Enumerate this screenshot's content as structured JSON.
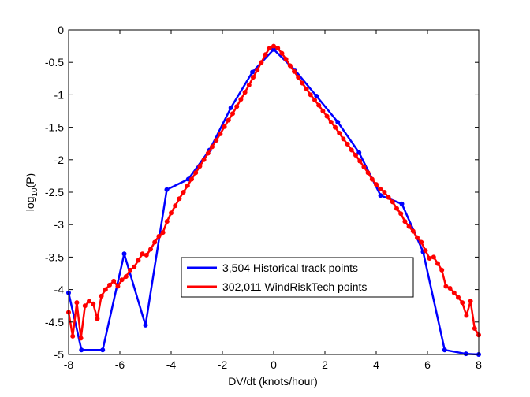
{
  "chart_data": {
    "type": "line",
    "title": "",
    "xlabel": "DV/dt (knots/hour)",
    "ylabel_base": "log",
    "ylabel_sub": "10",
    "ylabel_tail": "(P)",
    "xlim": [
      -8,
      8
    ],
    "ylim": [
      -5,
      0
    ],
    "xticks": [
      -8,
      -6,
      -4,
      -2,
      0,
      2,
      4,
      6,
      8
    ],
    "yticks": [
      0,
      -0.5,
      -1,
      -1.5,
      -2,
      -2.5,
      -3,
      -3.5,
      -4,
      -4.5,
      -5
    ],
    "grid": false,
    "legend_position": "center-right",
    "series": [
      {
        "name": "3,504 Historical track points",
        "color": "#0000ff",
        "x": [
          -8,
          -7.5,
          -6.67,
          -5.83,
          -5,
          -4.17,
          -3.33,
          -2.5,
          -1.67,
          -0.83,
          0,
          0.83,
          1.67,
          2.5,
          3.33,
          4.17,
          5,
          5.83,
          6.67,
          7.5,
          8
        ],
        "y": [
          -4.05,
          -4.93,
          -4.93,
          -3.45,
          -4.55,
          -2.46,
          -2.3,
          -1.85,
          -1.2,
          -0.65,
          -0.3,
          -0.62,
          -1.02,
          -1.42,
          -1.89,
          -2.55,
          -2.68,
          -3.42,
          -4.93,
          -4.99,
          -5.0
        ]
      },
      {
        "name": "302,011 WindRiskTech points",
        "color": "#ff0000",
        "x": [
          -8,
          -7.84,
          -7.68,
          -7.52,
          -7.36,
          -7.2,
          -7.04,
          -6.88,
          -6.72,
          -6.56,
          -6.4,
          -6.24,
          -6.08,
          -5.92,
          -5.76,
          -5.6,
          -5.44,
          -5.28,
          -5.12,
          -4.96,
          -4.8,
          -4.64,
          -4.48,
          -4.32,
          -4.16,
          -4.0,
          -3.84,
          -3.68,
          -3.52,
          -3.36,
          -3.2,
          -3.04,
          -2.88,
          -2.72,
          -2.56,
          -2.4,
          -2.24,
          -2.08,
          -1.92,
          -1.76,
          -1.6,
          -1.44,
          -1.28,
          -1.12,
          -0.96,
          -0.8,
          -0.64,
          -0.48,
          -0.32,
          -0.16,
          0,
          0.16,
          0.32,
          0.48,
          0.64,
          0.8,
          0.96,
          1.12,
          1.28,
          1.44,
          1.6,
          1.76,
          1.92,
          2.08,
          2.24,
          2.4,
          2.56,
          2.72,
          2.88,
          3.04,
          3.2,
          3.36,
          3.52,
          3.68,
          3.84,
          4.0,
          4.16,
          4.32,
          4.48,
          4.64,
          4.8,
          4.96,
          5.12,
          5.28,
          5.44,
          5.6,
          5.76,
          5.92,
          6.08,
          6.24,
          6.4,
          6.56,
          6.72,
          6.88,
          7.04,
          7.2,
          7.36,
          7.52,
          7.68,
          7.84,
          8.0
        ],
        "y": [
          -4.35,
          -4.72,
          -4.2,
          -4.75,
          -4.25,
          -4.18,
          -4.22,
          -4.45,
          -4.1,
          -4.0,
          -3.93,
          -3.87,
          -3.95,
          -3.85,
          -3.8,
          -3.7,
          -3.65,
          -3.55,
          -3.45,
          -3.47,
          -3.38,
          -3.27,
          -3.18,
          -3.12,
          -2.95,
          -2.82,
          -2.71,
          -2.6,
          -2.5,
          -2.4,
          -2.3,
          -2.2,
          -2.1,
          -2.0,
          -1.9,
          -1.8,
          -1.7,
          -1.6,
          -1.49,
          -1.39,
          -1.29,
          -1.18,
          -1.07,
          -0.96,
          -0.85,
          -0.73,
          -0.62,
          -0.5,
          -0.38,
          -0.28,
          -0.25,
          -0.28,
          -0.36,
          -0.45,
          -0.55,
          -0.64,
          -0.73,
          -0.82,
          -0.91,
          -1.0,
          -1.08,
          -1.16,
          -1.25,
          -1.33,
          -1.42,
          -1.5,
          -1.59,
          -1.68,
          -1.76,
          -1.85,
          -1.93,
          -2.02,
          -2.11,
          -2.2,
          -2.3,
          -2.38,
          -2.45,
          -2.5,
          -2.58,
          -2.65,
          -2.75,
          -2.83,
          -2.95,
          -3.03,
          -3.1,
          -3.2,
          -3.27,
          -3.4,
          -3.52,
          -3.5,
          -3.6,
          -3.7,
          -3.95,
          -3.98,
          -4.05,
          -4.12,
          -4.2,
          -4.4,
          -4.18,
          -4.6,
          -4.7
        ]
      }
    ]
  }
}
